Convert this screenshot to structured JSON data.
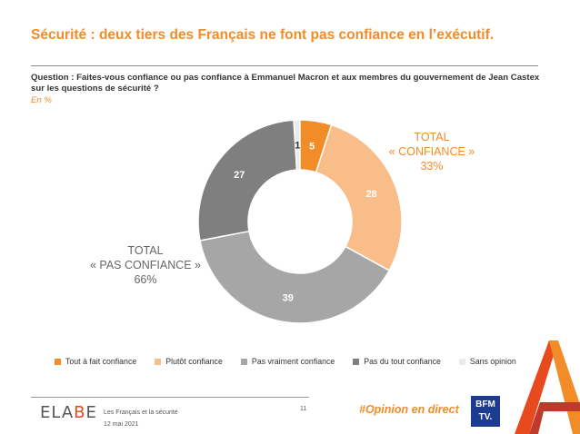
{
  "title": "Sécurité : deux tiers des Français ne font pas confiance en l’exécutif.",
  "question": "Question : Faites-vous confiance ou pas confiance à Emmanuel Macron et aux membres du gouvernement de Jean Castex sur les questions de sécurité ?",
  "unit": "En %",
  "totals": {
    "confidence": {
      "line1": "TOTAL",
      "line2": "« CONFIANCE »",
      "value": "33%"
    },
    "no_confidence": {
      "line1": "TOTAL",
      "line2": "« PAS CONFIANCE »",
      "value": "66%"
    }
  },
  "chart_data": {
    "type": "pie",
    "donut": true,
    "categories": [
      "Tout à fait confiance",
      "Plutôt confiance",
      "Pas vraiment confiance",
      "Pas du tout confiance",
      "Sans opinion"
    ],
    "values": [
      5,
      28,
      39,
      27,
      1
    ],
    "colors": [
      "#f28c28",
      "#f9bd8a",
      "#a6a6a6",
      "#7f7f7f",
      "#ebebeb"
    ],
    "label_colors": [
      "#ffffff",
      "#ffffff",
      "#ffffff",
      "#ffffff",
      "#333333"
    ],
    "legend_position": "bottom"
  },
  "footer": {
    "logo_left": "ELA",
    "logo_accent": "B",
    "logo_right": "E",
    "subtitle": "Les Français et la sécurité",
    "date": "12 mai 2021",
    "page": "11",
    "hashtag": "#Opinion en direct",
    "partner_line1": "BFM",
    "partner_line2": "TV."
  }
}
